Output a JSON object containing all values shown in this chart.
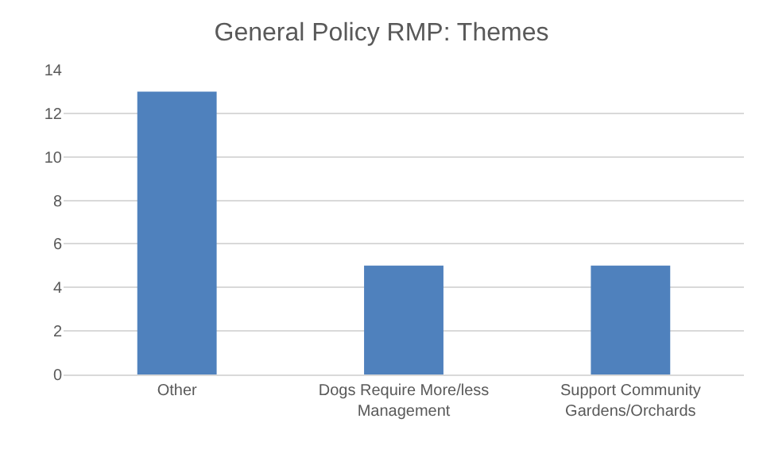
{
  "chart_data": {
    "type": "bar",
    "title": "General Policy RMP: Themes",
    "categories": [
      "Other",
      "Dogs Require More/less Management",
      "Support Community Gardens/Orchards"
    ],
    "values": [
      13,
      5,
      5
    ],
    "color": "#4f81bd",
    "ylim": [
      0,
      14
    ],
    "yticks": [
      0,
      2,
      4,
      6,
      8,
      10,
      12,
      14
    ],
    "grid": "y"
  }
}
